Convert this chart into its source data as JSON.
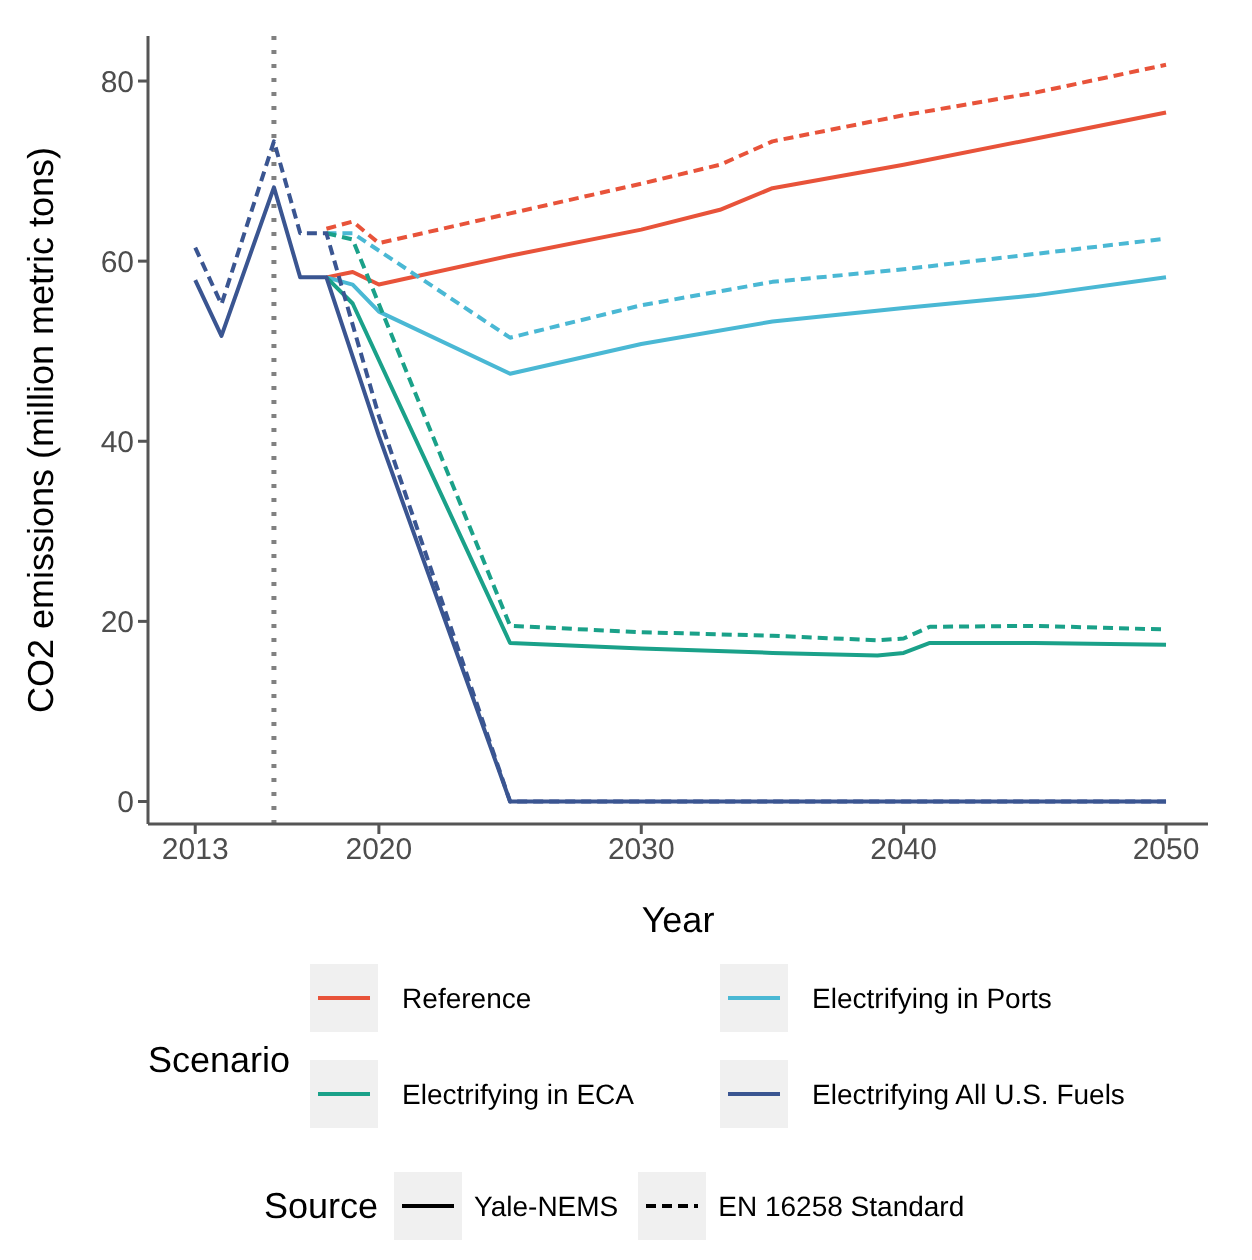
{
  "chart_data": {
    "type": "line",
    "xlabel": "Year",
    "ylabel": "CO2 emissions (million metric tons)",
    "legend_title": "Scenario",
    "legend": "bottom",
    "grid": false,
    "marker": "none",
    "xlim": [
      2011.2,
      2051.6
    ],
    "xticks": [
      2013,
      2020,
      2030,
      2040,
      2050
    ],
    "ylim": [
      -2.5,
      85
    ],
    "yticks": [
      0,
      20,
      40,
      60,
      80
    ],
    "annotations": [
      "Source",
      "Yale-NEMS",
      "EN 16258 Standard"
    ],
    "ref_lines": [
      {
        "axis": "x",
        "value": 2016,
        "label": null,
        "color": "#808080",
        "line_style": "dotted"
      }
    ],
    "series": [
      {
        "name": "Reference",
        "color": "#e8533a",
        "line_style": "solid",
        "x": [
          2018,
          2019,
          2020,
          2025,
          2030,
          2033,
          2035,
          2040,
          2045,
          2050
        ],
        "values": [
          58.2,
          58.8,
          57.4,
          60.6,
          63.5,
          65.7,
          68.1,
          70.7,
          73.6,
          76.5
        ]
      },
      {
        "color": "#e8533a",
        "line_style": "dashed",
        "x": [
          2018,
          2019,
          2020,
          2025,
          2030,
          2033,
          2035,
          2040,
          2045,
          2050
        ],
        "values": [
          63.6,
          64.4,
          62,
          65.3,
          68.6,
          70.7,
          73.3,
          76.2,
          78.7,
          81.8
        ]
      },
      {
        "name": "Electrifying in Ports",
        "color": "#4ab8d4",
        "line_style": "solid",
        "x": [
          2018,
          2019,
          2020,
          2025,
          2030,
          2035,
          2040,
          2045,
          2050
        ],
        "values": [
          58.2,
          57.4,
          54.4,
          47.5,
          50.8,
          53.3,
          54.8,
          56.2,
          58.2
        ]
      },
      {
        "color": "#4ab8d4",
        "line_style": "dashed",
        "x": [
          2018,
          2019,
          2025,
          2030,
          2035,
          2040,
          2045,
          2050
        ],
        "values": [
          63.1,
          63.1,
          51.5,
          55.1,
          57.7,
          59.1,
          60.8,
          62.5
        ]
      },
      {
        "name": "Electrifying in ECA",
        "color": "#1aa189",
        "line_style": "solid",
        "x": [
          2018,
          2019,
          2025,
          2030,
          2035,
          2039,
          2040,
          2041,
          2045,
          2050
        ],
        "values": [
          58.2,
          55.3,
          17.6,
          17,
          16.5,
          16.2,
          16.5,
          17.6,
          17.6,
          17.4
        ]
      },
      {
        "color": "#1aa189",
        "line_style": "dashed",
        "x": [
          2018,
          2019,
          2025,
          2030,
          2035,
          2039,
          2040,
          2041,
          2045,
          2050
        ],
        "values": [
          63.1,
          62.4,
          19.5,
          18.8,
          18.4,
          17.9,
          18.1,
          19.4,
          19.5,
          19.1
        ]
      },
      {
        "name": "Electrifying All U.S. Fuels",
        "color": "#3a5591",
        "line_style": "solid",
        "x": [
          2013,
          2014,
          2016,
          2017,
          2018,
          2020,
          2025,
          2050
        ],
        "values": [
          57.9,
          51.7,
          68.2,
          58.2,
          58.2,
          40.6,
          0,
          0
        ]
      },
      {
        "color": "#3a5591",
        "line_style": "dashed",
        "x": [
          2013,
          2014,
          2016,
          2017,
          2018,
          2020,
          2025,
          2050
        ],
        "values": [
          61.5,
          55.2,
          73.3,
          63.1,
          63.1,
          42.8,
          0,
          0
        ]
      }
    ]
  }
}
